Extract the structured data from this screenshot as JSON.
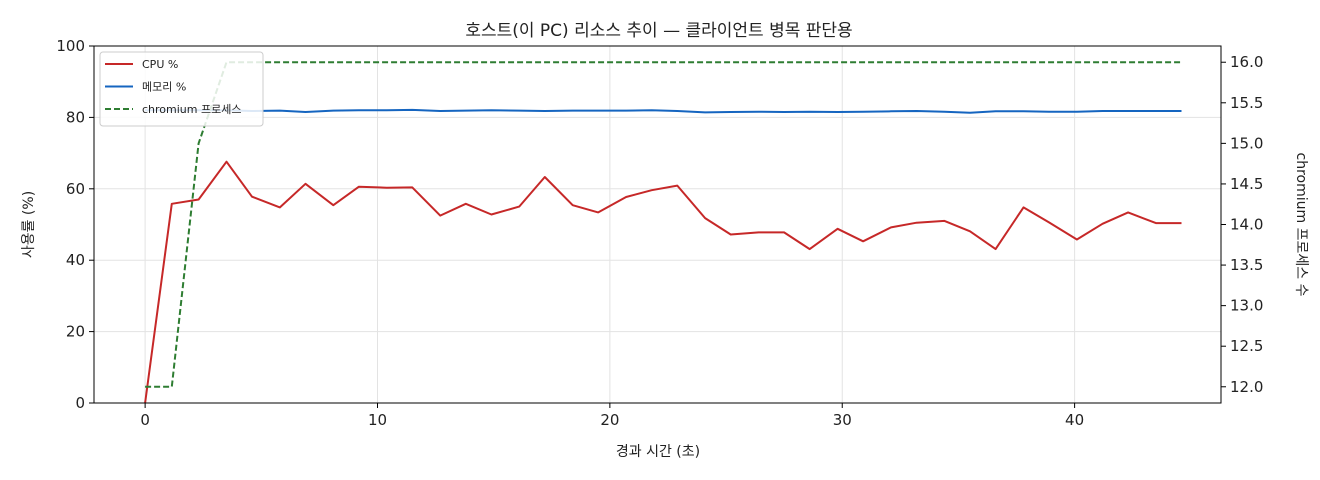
{
  "chart_data": {
    "type": "line",
    "title": "호스트(이 PC) 리소스 추이 — 클라이언트 병목 판단용",
    "xlabel": "경과 시간 (초)",
    "ylabel": "사용률 (%)",
    "y2label": "chromium 프로세스 수",
    "xlim": [
      -2.2,
      46.3
    ],
    "ylim": [
      0,
      100
    ],
    "y2lim": [
      11.8,
      16.2
    ],
    "xticks": [
      0,
      10,
      20,
      30,
      40
    ],
    "yticks": [
      0,
      20,
      40,
      60,
      80,
      100
    ],
    "y2ticks": [
      "12.0",
      "12.5",
      "13.0",
      "13.5",
      "14.0",
      "14.5",
      "15.0",
      "15.5",
      "16.0"
    ],
    "grid": true,
    "legend_position": "upper-left",
    "x": [
      0,
      1.15,
      2.3,
      3.5,
      4.6,
      5.8,
      6.9,
      8.1,
      9.2,
      10.4,
      11.5,
      12.7,
      13.8,
      14.9,
      16.1,
      17.2,
      18.4,
      19.5,
      20.7,
      21.8,
      22.9,
      24.1,
      25.2,
      26.4,
      27.5,
      28.6,
      29.8,
      30.9,
      32.1,
      33.2,
      34.4,
      35.5,
      36.6,
      37.8,
      38.9,
      40.1,
      41.2,
      42.3,
      43.5,
      44.6
    ],
    "series": [
      {
        "name": "CPU %",
        "axis": "left",
        "color": "#c62828",
        "style": "solid",
        "values": [
          0,
          55.8,
          57.0,
          67.6,
          57.8,
          54.8,
          61.4,
          55.4,
          60.6,
          60.3,
          60.4,
          52.5,
          55.8,
          52.8,
          55.0,
          63.3,
          55.4,
          53.4,
          57.7,
          59.6,
          60.9,
          51.8,
          47.2,
          47.8,
          47.8,
          43.1,
          48.8,
          45.3,
          49.2,
          50.5,
          51.0,
          48.1,
          43.1,
          54.8,
          50.6,
          45.8,
          50.2,
          53.4,
          50.4,
          50.4
        ]
      },
      {
        "name": "메모리 %",
        "axis": "left",
        "color": "#1565c0",
        "style": "solid",
        "values": [
          82.0,
          82.0,
          82.0,
          82.0,
          81.8,
          81.9,
          81.5,
          81.9,
          82.0,
          82.0,
          82.1,
          81.8,
          81.9,
          82.0,
          81.9,
          81.8,
          81.9,
          81.9,
          81.9,
          82.0,
          81.8,
          81.4,
          81.5,
          81.6,
          81.5,
          81.6,
          81.5,
          81.6,
          81.7,
          81.8,
          81.6,
          81.3,
          81.7,
          81.7,
          81.6,
          81.6,
          81.8,
          81.8,
          81.8,
          81.8
        ]
      },
      {
        "name": "chromium 프로세스",
        "axis": "right",
        "color": "#2e7d32",
        "style": "dashed",
        "values": [
          12,
          12,
          15,
          16,
          16,
          16,
          16,
          16,
          16,
          16,
          16,
          16,
          16,
          16,
          16,
          16,
          16,
          16,
          16,
          16,
          16,
          16,
          16,
          16,
          16,
          16,
          16,
          16,
          16,
          16,
          16,
          16,
          16,
          16,
          16,
          16,
          16,
          16,
          16,
          16
        ]
      }
    ]
  }
}
